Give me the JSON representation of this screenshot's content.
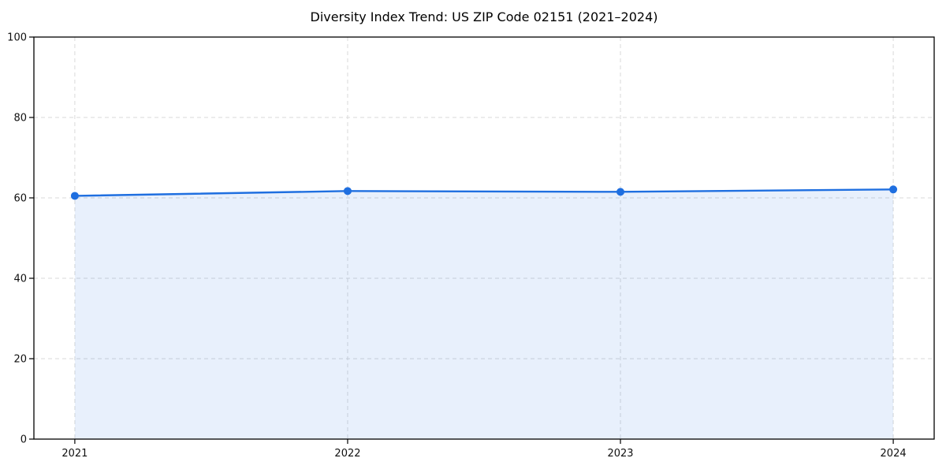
{
  "chart_data": {
    "type": "area",
    "title": "Diversity Index Trend: US ZIP Code 02151 (2021–2024)",
    "x": [
      "2021",
      "2022",
      "2023",
      "2024"
    ],
    "series": [
      {
        "name": "Diversity Index",
        "values": [
          60.5,
          61.7,
          61.5,
          62.1
        ]
      }
    ],
    "xlabel": "",
    "ylabel": "",
    "ylim": [
      0,
      100
    ],
    "yticks": [
      0,
      20,
      40,
      60,
      80,
      100
    ],
    "grid": true,
    "grid_style": "dashed",
    "legend_position": "none",
    "colors": {
      "line": "#1f6fe0",
      "marker": "#1f6fe0",
      "fill": "#1f6fe0",
      "fill_opacity": 0.1,
      "grid": "#d9d9d9",
      "spine": "#000000",
      "tick_text": "#101010",
      "title_text": "#000000",
      "background": "#ffffff"
    }
  }
}
